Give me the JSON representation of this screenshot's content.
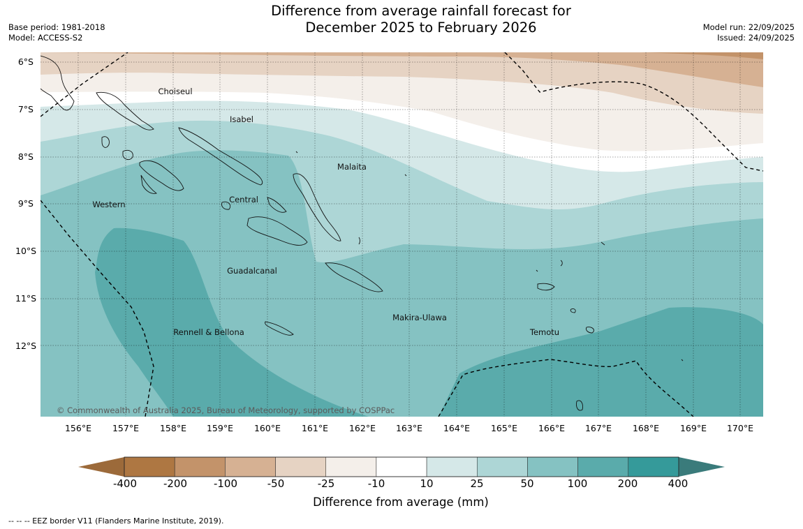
{
  "title_line1": "Difference from average rainfall forecast for",
  "title_line2": "December 2025 to February 2026",
  "base_period": "Base period: 1981-2018",
  "model": "Model: ACCESS-S2",
  "model_run": "Model run: 22/09/2025",
  "issued": "Issued: 24/09/2025",
  "lat_labels": [
    "6°S",
    "7°S",
    "8°S",
    "9°S",
    "10°S",
    "11°S",
    "12°S"
  ],
  "lon_labels": [
    "156°E",
    "157°E",
    "158°E",
    "159°E",
    "160°E",
    "161°E",
    "162°E",
    "163°E",
    "164°E",
    "165°E",
    "166°E",
    "167°E",
    "168°E",
    "169°E",
    "170°E"
  ],
  "regions": {
    "choiseul": "Choiseul",
    "isabel": "Isabel",
    "malaita": "Malaita",
    "western": "Western",
    "central": "Central",
    "guadalcanal": "Guadalcanal",
    "makira": "Makira-Ulawa",
    "rennell": "Rennell & Bellona",
    "temotu": "Temotu"
  },
  "copyright": "© Commonwealth of Australia 2025, Bureau of Meteorology, supported by COSPPac",
  "colorbar": {
    "ticks": [
      "-400",
      "-200",
      "-100",
      "-50",
      "-25",
      "-10",
      "10",
      "25",
      "50",
      "100",
      "200",
      "400"
    ],
    "colors": [
      "#ae7742",
      "#c3936a",
      "#d6b193",
      "#e6d3c3",
      "#f4efea",
      "#ffffff",
      "#d5e8e8",
      "#add6d6",
      "#85c2c2",
      "#5aabab",
      "#359a9a"
    ],
    "under_color": "#9c6a3a",
    "over_color": "#3a7b7b",
    "label": "Difference from average (mm)"
  },
  "footer": "--  --  -- EEZ border V11 (Flanders Marine Institute, 2019)."
}
